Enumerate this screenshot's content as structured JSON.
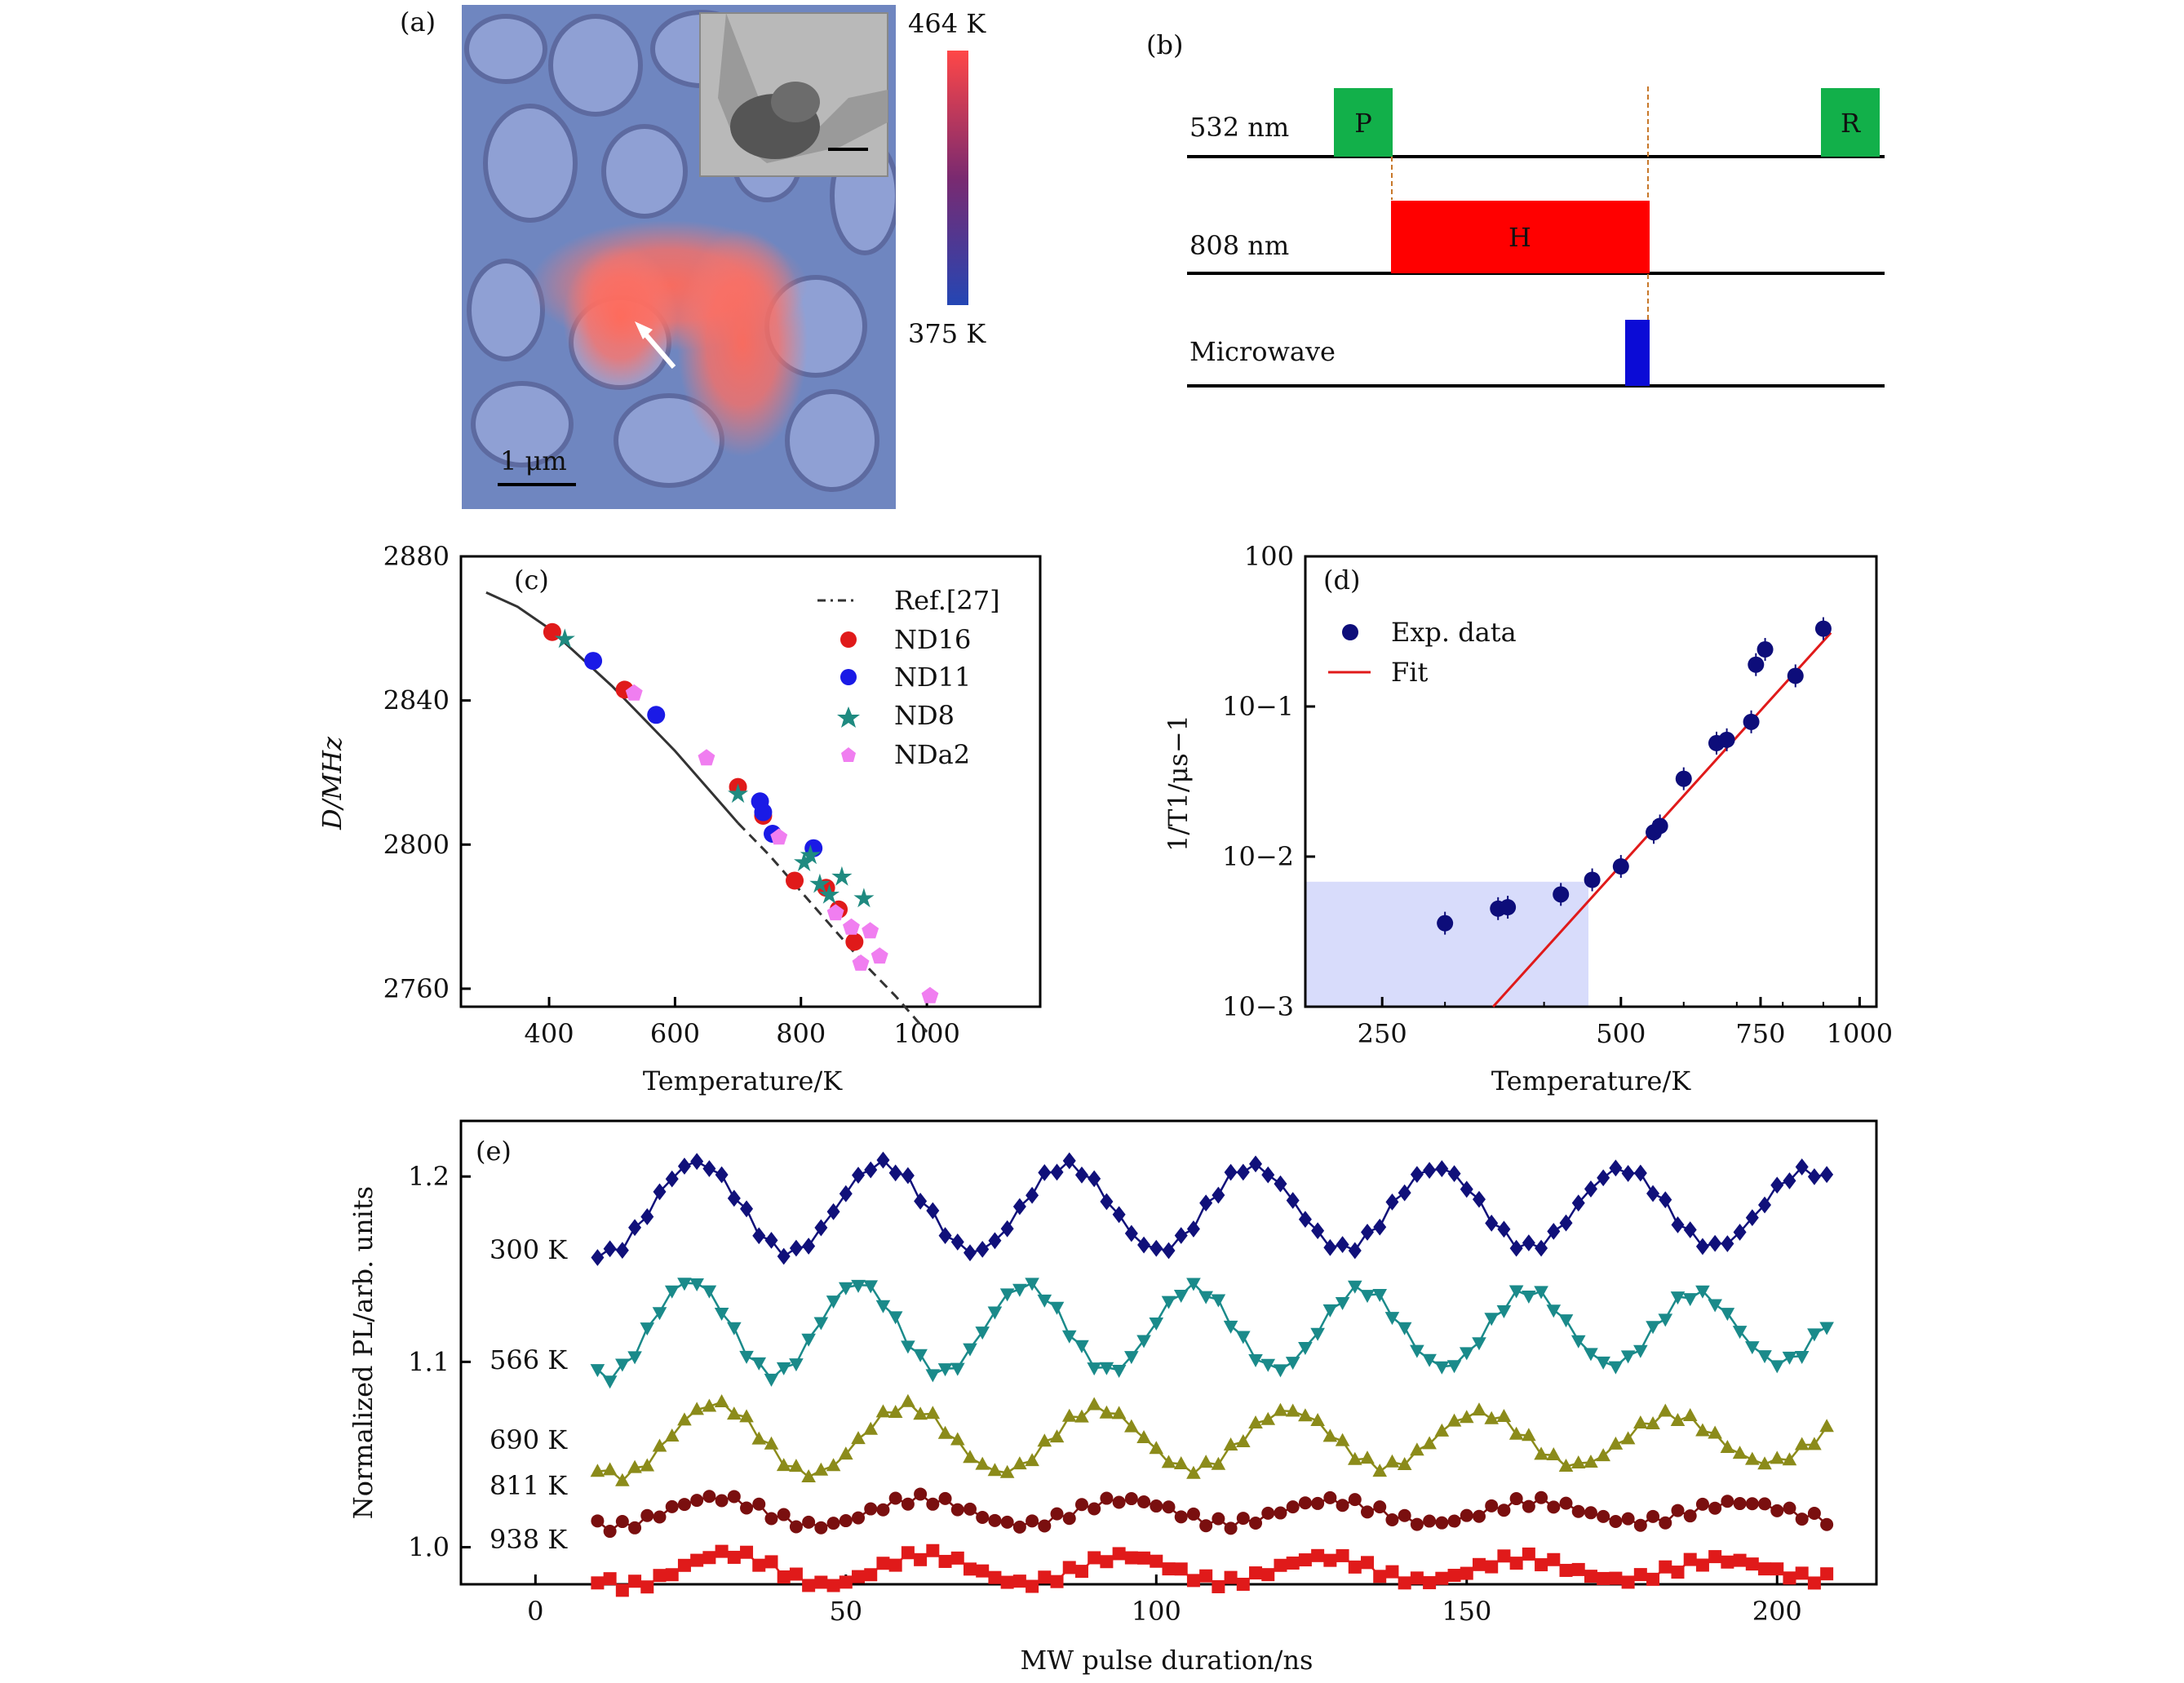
{
  "panel_labels": {
    "a": "(a)",
    "b": "(b)",
    "c": "(c)",
    "d": "(d)",
    "e": "(e)"
  },
  "panel_a": {
    "colorbar_max": "464 K",
    "colorbar_min": "375 K",
    "scale_bar": "1 μm",
    "colors": {
      "hot": "#ff4a4a",
      "cold": "#2446b4",
      "background": "#6f86c0"
    }
  },
  "panel_b": {
    "rows": [
      {
        "label": "532 nm",
        "pulses": [
          {
            "text": "P",
            "color": "#12b04a"
          },
          {
            "text": "R",
            "color": "#12b04a"
          }
        ]
      },
      {
        "label": "808 nm",
        "pulses": [
          {
            "text": "H",
            "color": "#ff0000"
          }
        ]
      },
      {
        "label": "Microwave",
        "pulses": [
          {
            "text": "",
            "color": "#0b0bd6"
          }
        ]
      }
    ],
    "guide_color": "#c8782a"
  },
  "chart_data": [
    {
      "panel": "c",
      "type": "scatter",
      "xlabel": "Temperature/K",
      "ylabel": "D/MHz",
      "xlim": [
        260,
        1180
      ],
      "ylim": [
        2755,
        2880
      ],
      "xticks": [
        "400",
        "600",
        "800",
        "1000"
      ],
      "yticks": [
        "2760",
        "2800",
        "2840",
        "2880"
      ],
      "legend": [
        "Ref.[27]",
        "ND16",
        "ND11",
        "ND8",
        "NDa2"
      ],
      "ref_curve": {
        "x": [
          300,
          350,
          400,
          450,
          500,
          550,
          600,
          650,
          700,
          750,
          800,
          850,
          900,
          950,
          1000
        ],
        "y": [
          2870,
          2866,
          2860,
          2852,
          2844,
          2835,
          2826,
          2816,
          2806,
          2797,
          2787,
          2777,
          2767,
          2758,
          2748
        ]
      },
      "series": [
        {
          "name": "ND16",
          "color": "#e01a1a",
          "marker": "circle",
          "x": [
            405,
            520,
            700,
            740,
            790,
            840,
            860,
            885
          ],
          "y": [
            2859,
            2843,
            2816,
            2808,
            2790,
            2788,
            2782,
            2773
          ]
        },
        {
          "name": "ND11",
          "color": "#1a1ae6",
          "marker": "circle",
          "x": [
            470,
            570,
            735,
            740,
            755,
            820
          ],
          "y": [
            2851,
            2836,
            2812,
            2809,
            2803,
            2799
          ]
        },
        {
          "name": "ND8",
          "color": "#1f8a80",
          "marker": "star",
          "x": [
            425,
            700,
            805,
            815,
            830,
            845,
            865,
            900
          ],
          "y": [
            2857,
            2814,
            2795,
            2797,
            2789,
            2786,
            2791,
            2785
          ]
        },
        {
          "name": "NDa2",
          "color": "#f07ef0",
          "marker": "pentagon",
          "x": [
            535,
            650,
            765,
            855,
            880,
            895,
            910,
            925,
            1005
          ],
          "y": [
            2842,
            2824,
            2802,
            2781,
            2777,
            2767,
            2776,
            2769,
            2758
          ]
        }
      ]
    },
    {
      "panel": "d",
      "type": "scatter",
      "xlabel": "Temperature/K",
      "ylabel": "1/T1/μs−1",
      "xscale": "log",
      "yscale": "log",
      "xlim": [
        200,
        1050
      ],
      "ylim": [
        0.001,
        1
      ],
      "xticks": [
        "250",
        "500",
        "750",
        "1000"
      ],
      "yticks": [
        "10−3",
        "10−2",
        "10−1",
        "100"
      ],
      "legend": [
        "Exp. data",
        "Fit"
      ],
      "series": [
        {
          "name": "Exp. data",
          "color": "#0d0d7a",
          "x": [
            300,
            350,
            360,
            420,
            460,
            500,
            550,
            560,
            600,
            660,
            680,
            730,
            740,
            760,
            830,
            900
          ],
          "y": [
            0.0036,
            0.0045,
            0.0046,
            0.0056,
            0.007,
            0.0086,
            0.0145,
            0.016,
            0.033,
            0.057,
            0.06,
            0.079,
            0.19,
            0.24,
            0.16,
            0.33
          ]
        },
        {
          "name": "Fit",
          "color": "#e01a1a",
          "x": [
            345,
            920
          ],
          "y": [
            0.001,
            0.31
          ]
        }
      ],
      "shaded_region": {
        "x": [
          200,
          455
        ],
        "y": [
          0.001,
          0.0068
        ],
        "color": "#d8dcfb"
      }
    },
    {
      "panel": "e",
      "type": "line",
      "xlabel": "MW pulse duration/ns",
      "ylabel": "Normalized PL/arb. units",
      "xlim": [
        -12,
        216
      ],
      "ylim": [
        0.98,
        1.23
      ],
      "xticks": [
        "0",
        "50",
        "100",
        "150",
        "200"
      ],
      "yticks": [
        "1.0",
        "1.1",
        "1.2"
      ],
      "series": [
        {
          "name": "300 K",
          "color": "#10107a",
          "marker": "diamond",
          "base": 1.183,
          "amp": 0.025,
          "decay": 0.2,
          "period": 29.8,
          "phase": 26
        },
        {
          "name": "566 K",
          "color": "#1a8a8a",
          "marker": "triangle-down",
          "base": 1.118,
          "amp": 0.026,
          "decay": 0.3,
          "period": 27.0,
          "phase": 25
        },
        {
          "name": "690 K",
          "color": "#8b8b1a",
          "marker": "triangle-up",
          "base": 1.058,
          "amp": 0.02,
          "decay": 0.4,
          "period": 30.8,
          "phase": 29
        },
        {
          "name": "811 K",
          "color": "#7a0f0f",
          "marker": "circle",
          "base": 1.019,
          "amp": 0.008,
          "decay": 0.4,
          "period": 33.0,
          "phase": 29
        },
        {
          "name": "938 K",
          "color": "#e01a1a",
          "marker": "square",
          "base": 0.988,
          "amp": 0.009,
          "decay": 0.45,
          "period": 32.0,
          "phase": 31
        }
      ],
      "x_start": 10,
      "x_end": 208,
      "x_step": 2
    }
  ]
}
